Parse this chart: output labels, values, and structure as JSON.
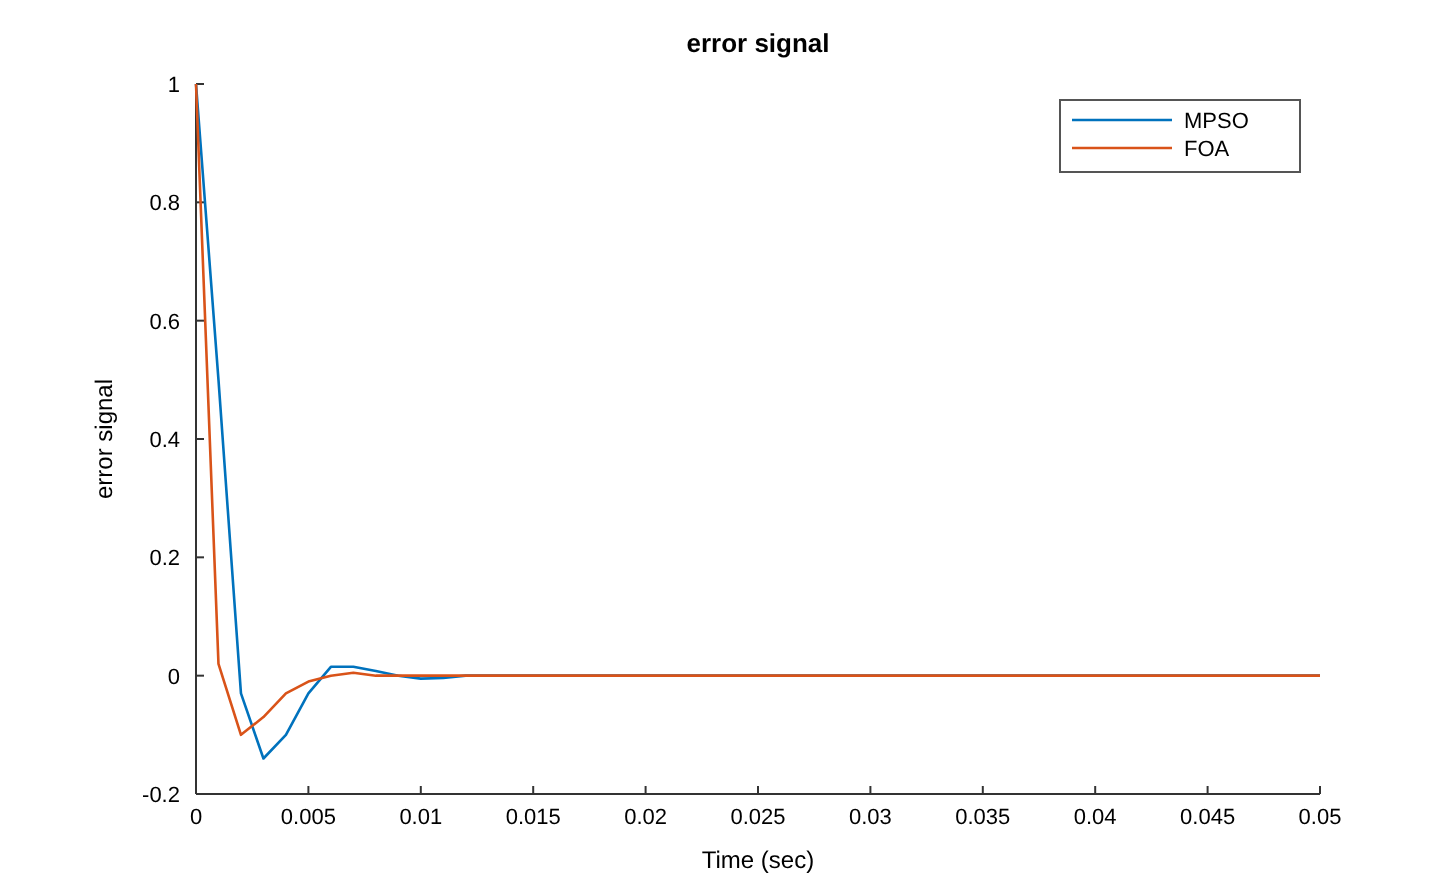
{
  "chart_data": {
    "type": "line",
    "title": "error signal",
    "xlabel": "Time (sec)",
    "ylabel": "error signal",
    "series": [
      {
        "name": "MPSO",
        "color": "#0072bd",
        "x": [
          0,
          0.001,
          0.002,
          0.003,
          0.004,
          0.005,
          0.006,
          0.007,
          0.008,
          0.009,
          0.01,
          0.011,
          0.012,
          0.013,
          0.05
        ],
        "values": [
          1,
          0.5,
          -0.03,
          -0.14,
          -0.1,
          -0.03,
          0.015,
          0.015,
          0.008,
          0,
          -0.005,
          -0.004,
          0,
          0,
          0
        ]
      },
      {
        "name": "FOA",
        "color": "#d95319",
        "x": [
          0,
          0.001,
          0.002,
          0.003,
          0.004,
          0.005,
          0.006,
          0.007,
          0.008,
          0.05
        ],
        "values": [
          1,
          0.02,
          -0.1,
          -0.07,
          -0.03,
          -0.01,
          0,
          0.005,
          0,
          0
        ]
      }
    ],
    "xlim": [
      0,
      0.05
    ],
    "ylim": [
      -0.2,
      1
    ],
    "xticks": [
      0,
      0.005,
      0.01,
      0.015,
      0.02,
      0.025,
      0.03,
      0.035,
      0.04,
      0.045,
      0.05
    ],
    "yticks": [
      -0.2,
      0,
      0.2,
      0.4,
      0.6,
      0.8,
      1
    ],
    "legend": "top right"
  }
}
